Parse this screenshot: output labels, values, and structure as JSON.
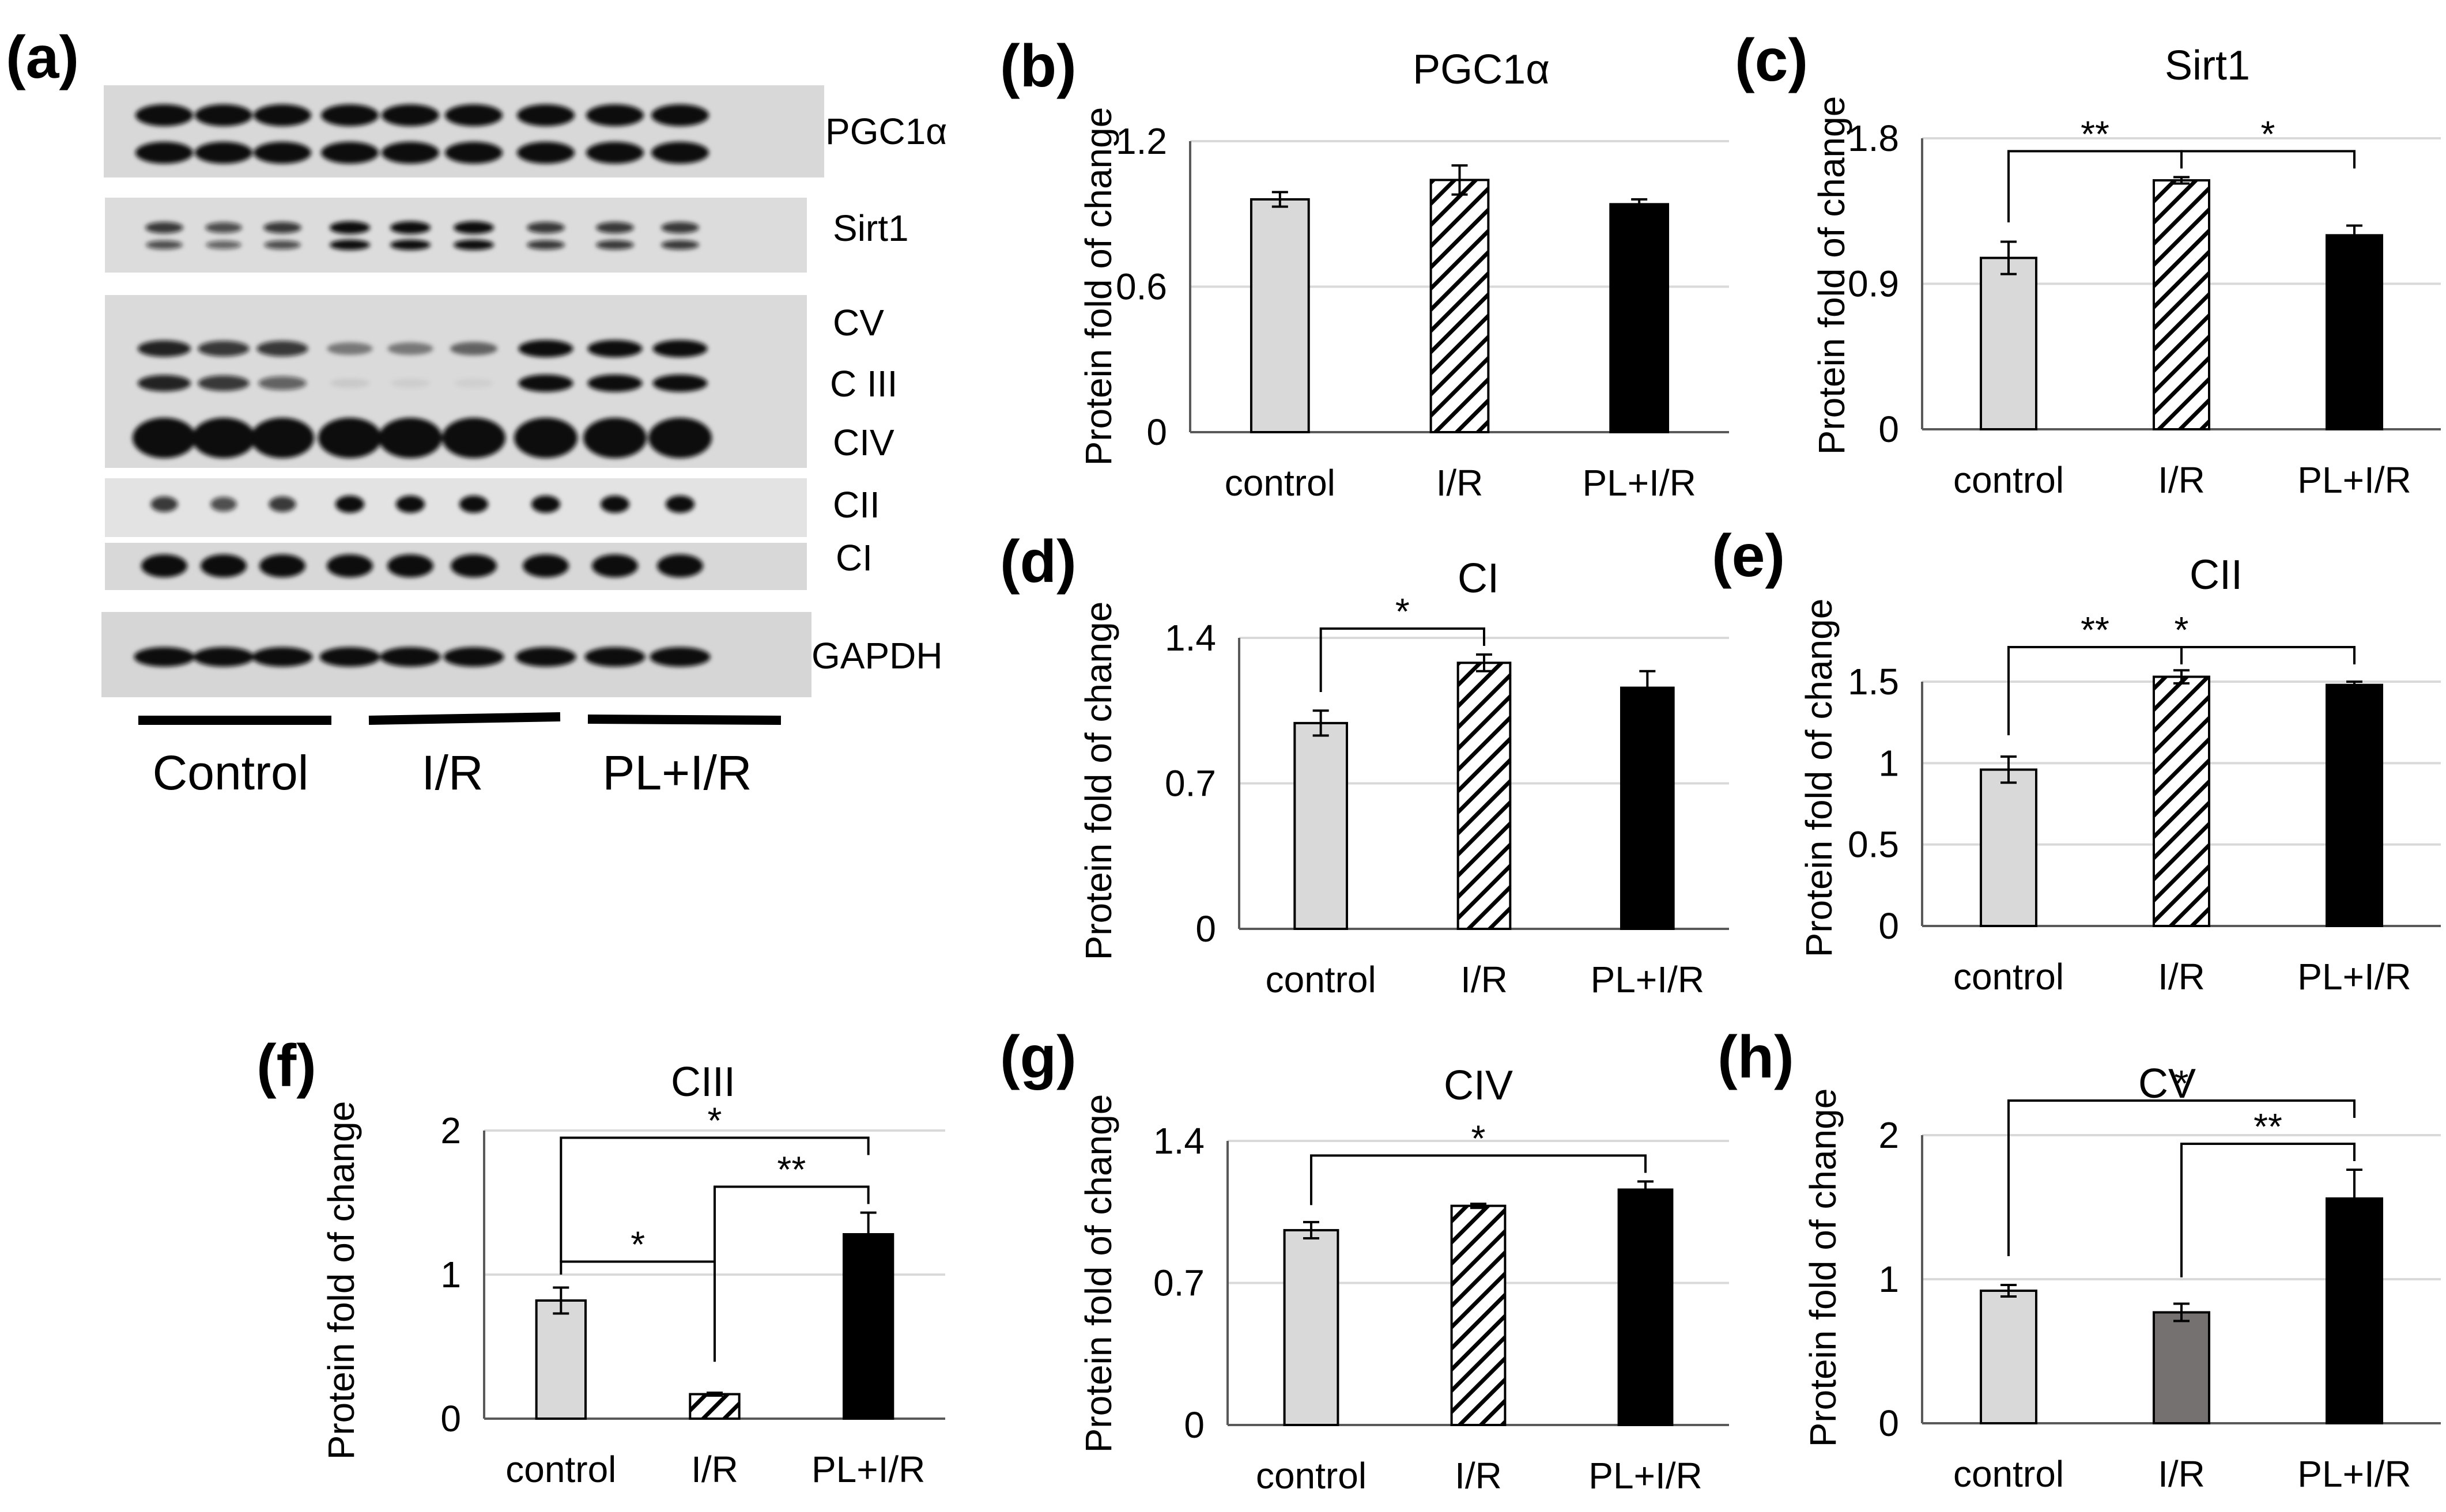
{
  "colors": {
    "control": "#d9d9d9",
    "ir": "#000000",
    "pl": "#000000",
    "ir_cv": "#767171",
    "grid": "#d9d9d9",
    "axis": "#595959",
    "blot_bg": "#dcdcdc",
    "band": "#0b0b0b"
  },
  "blot": {
    "letter": "(a)",
    "rows": [
      {
        "key": "pgc1a",
        "label": "PGC1α"
      },
      {
        "key": "sirt1",
        "label": "Sirt1"
      },
      {
        "key": "cv",
        "label": "CV"
      },
      {
        "key": "ciii",
        "label": "C III"
      },
      {
        "key": "civ",
        "label": "CIV"
      },
      {
        "key": "cii",
        "label": "CII"
      },
      {
        "key": "ci",
        "label": "CI"
      },
      {
        "key": "gapdh",
        "label": "GAPDH"
      }
    ],
    "groups": [
      "Control",
      "I/R",
      "PL+I/R"
    ]
  },
  "chart_data": [
    {
      "panel": "(b)",
      "type": "bar",
      "title": "PGC1α",
      "xlabel": "",
      "ylabel": "Protein fold of change",
      "categories": [
        "control",
        "I/R",
        "PL+I/R"
      ],
      "values": [
        0.96,
        1.04,
        0.94
      ],
      "errors": [
        0.03,
        0.06,
        0.02
      ],
      "ylim": [
        0,
        1.2
      ],
      "yticks": [
        "0",
        "0.6",
        "1.2"
      ],
      "fills": [
        "solid",
        "hatch",
        "black"
      ],
      "significance": []
    },
    {
      "panel": "(c)",
      "type": "bar",
      "title": "Sirt1",
      "xlabel": "",
      "ylabel": "Protein fold of change",
      "categories": [
        "control",
        "I/R",
        "PL+I/R"
      ],
      "values": [
        1.06,
        1.54,
        1.2
      ],
      "errors": [
        0.1,
        0.02,
        0.06
      ],
      "ylim": [
        0,
        1.8
      ],
      "yticks": [
        "0",
        "0.9",
        "1.8"
      ],
      "fills": [
        "solid",
        "hatch",
        "black"
      ],
      "significance": [
        {
          "from": 0,
          "to": 1,
          "label": "**"
        },
        {
          "from": 1,
          "to": 2,
          "label": "*"
        }
      ]
    },
    {
      "panel": "(d)",
      "type": "bar",
      "title": "CI",
      "xlabel": "",
      "ylabel": "Protein fold of change",
      "categories": [
        "control",
        "I/R",
        "PL+I/R"
      ],
      "values": [
        0.99,
        1.28,
        1.16
      ],
      "errors": [
        0.06,
        0.04,
        0.08
      ],
      "ylim": [
        0,
        1.4
      ],
      "yticks": [
        "0",
        "0.7",
        "1.4"
      ],
      "fills": [
        "solid",
        "hatch",
        "black"
      ],
      "significance": [
        {
          "from": 0,
          "to": 1,
          "label": "*"
        }
      ]
    },
    {
      "panel": "(e)",
      "type": "bar",
      "title": "CII",
      "xlabel": "",
      "ylabel": "Protein fold of change",
      "categories": [
        "control",
        "I/R",
        "PL+I/R"
      ],
      "values": [
        0.96,
        1.53,
        1.48
      ],
      "errors": [
        0.08,
        0.04,
        0.02
      ],
      "ylim": [
        0,
        1.5
      ],
      "yticks": [
        "0",
        "0.5",
        "1",
        "1.5"
      ],
      "fills": [
        "solid",
        "hatch",
        "black"
      ],
      "significance": [
        {
          "from": 0,
          "to": 1,
          "label": "**"
        },
        {
          "from": 0,
          "to": 2,
          "label": "*"
        }
      ]
    },
    {
      "panel": "(f)",
      "type": "bar",
      "title": "CIII",
      "xlabel": "",
      "ylabel": "Protein fold of change",
      "categories": [
        "control",
        "I/R",
        "PL+I/R"
      ],
      "values": [
        0.82,
        0.17,
        1.28
      ],
      "errors": [
        0.09,
        0.01,
        0.15
      ],
      "ylim": [
        0,
        2
      ],
      "yticks": [
        "0",
        "1",
        "2"
      ],
      "fills": [
        "solid",
        "hatch",
        "black"
      ],
      "significance": [
        {
          "from": 0,
          "to": 1,
          "label": "*"
        },
        {
          "from": 1,
          "to": 2,
          "label": "**"
        },
        {
          "from": 0,
          "to": 2,
          "label": "*"
        }
      ]
    },
    {
      "panel": "(g)",
      "type": "bar",
      "title": "CIV",
      "xlabel": "",
      "ylabel": "Protein fold of change",
      "categories": [
        "control",
        "I/R",
        "PL+I/R"
      ],
      "values": [
        0.96,
        1.08,
        1.16
      ],
      "errors": [
        0.04,
        0.01,
        0.04
      ],
      "ylim": [
        0,
        1.4
      ],
      "yticks": [
        "0",
        "0.7",
        "1.4"
      ],
      "fills": [
        "solid",
        "hatch",
        "black"
      ],
      "significance": [
        {
          "from": 0,
          "to": 2,
          "label": "*"
        }
      ]
    },
    {
      "panel": "(h)",
      "type": "bar",
      "title": "CV",
      "xlabel": "",
      "ylabel": "Protein fold of change",
      "categories": [
        "control",
        "I/R",
        "PL+I/R"
      ],
      "values": [
        0.92,
        0.77,
        1.56
      ],
      "errors": [
        0.04,
        0.06,
        0.2
      ],
      "ylim": [
        0,
        2
      ],
      "yticks": [
        "0",
        "1",
        "2"
      ],
      "fills": [
        "solid",
        "gray",
        "black"
      ],
      "significance": [
        {
          "from": 1,
          "to": 2,
          "label": "**"
        },
        {
          "from": 0,
          "to": 2,
          "label": "*"
        }
      ]
    }
  ]
}
